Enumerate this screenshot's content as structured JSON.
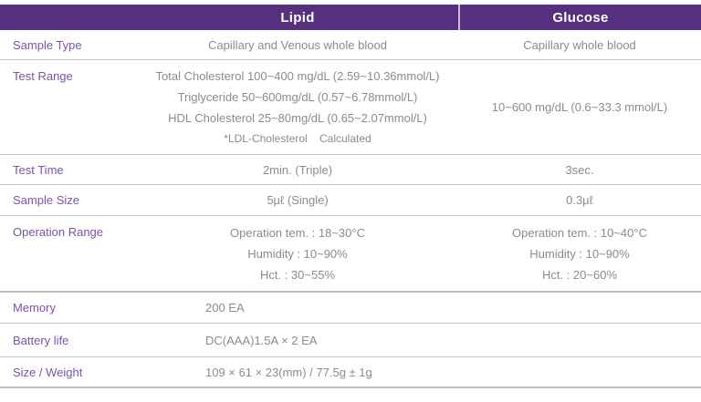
{
  "colors": {
    "header_bg": "#56307E",
    "header_text": "#FFFFFF",
    "label_text": "#7A54A6",
    "value_text": "#8B8B91",
    "divider": "#C6C6C6"
  },
  "table": {
    "header": {
      "lipid": "Lipid",
      "glucose": "Glucose"
    },
    "rows": {
      "sample_type": {
        "label": "Sample Type",
        "lipid": "Capillary and Venous whole blood",
        "glucose": "Capillary whole blood"
      },
      "test_range": {
        "label": "Test Range",
        "lipid_lines": [
          "Total Cholesterol 100~400 mg/dL (2.59~10.36mmol/L)",
          "Triglyceride 50~600mg/dL (0.57~6.78mmol/L)",
          "HDL Cholesterol 25~80mg/dL (0.65~2.07mmol/L)"
        ],
        "lipid_note": "*LDL-Cholesterol    Calculated",
        "glucose": "10~600 mg/dL (0.6~33.3 mmol/L)"
      },
      "test_time": {
        "label": "Test Time",
        "lipid": "2min. (Triple)",
        "glucose": "3sec."
      },
      "sample_size": {
        "label": "Sample Size",
        "lipid": "5µℓ (Single)",
        "glucose": "0.3µℓ"
      },
      "operation_range": {
        "label": "Operation Range",
        "lipid_lines": [
          "Operation tem. : 18~30°C",
          "Humidity : 10~90%",
          "Hct. : 30~55%"
        ],
        "glucose_lines": [
          "Operation tem. : 10~40°C",
          "Humidity : 10~90%",
          "Hct. : 20~60%"
        ]
      },
      "memory": {
        "label": "Memory",
        "value": "200 EA"
      },
      "battery_life": {
        "label": "Battery life",
        "value": "DC(AAA)1.5A × 2 EA"
      },
      "size_weight": {
        "label": "Size / Weight",
        "value": "109 × 61 × 23(mm) / 77.5g ± 1g"
      }
    }
  }
}
